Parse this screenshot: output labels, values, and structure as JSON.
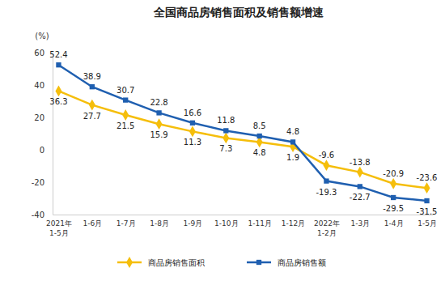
{
  "chart_data": {
    "type": "line",
    "title": "全国商品房销售面积及销售额增速",
    "y_label": "(%)",
    "categories": [
      "2021年\n1-5月",
      "1-6月",
      "1-7月",
      "1-8月",
      "1-9月",
      "1-10月",
      "1-11月",
      "1-12月",
      "2022年\n1-2月",
      "1-3月",
      "1-4月",
      "1-5月"
    ],
    "series": [
      {
        "name": "商品房销售面积",
        "color": "#f5be0b",
        "marker": "diamond",
        "values": [
          36.3,
          27.7,
          21.5,
          15.9,
          11.3,
          7.3,
          4.8,
          1.9,
          -9.6,
          -13.8,
          -20.9,
          -23.6
        ]
      },
      {
        "name": "商品房销售额",
        "color": "#1f5fb0",
        "marker": "square",
        "values": [
          52.4,
          38.9,
          30.7,
          22.8,
          16.6,
          11.8,
          8.5,
          4.8,
          -19.3,
          -22.7,
          -29.5,
          -31.5
        ]
      }
    ],
    "ylim": [
      -40,
      60
    ],
    "yticks": [
      -40,
      -20,
      0,
      20,
      40,
      60
    ],
    "data_labels": true,
    "legend": "bottom",
    "grid": false
  }
}
